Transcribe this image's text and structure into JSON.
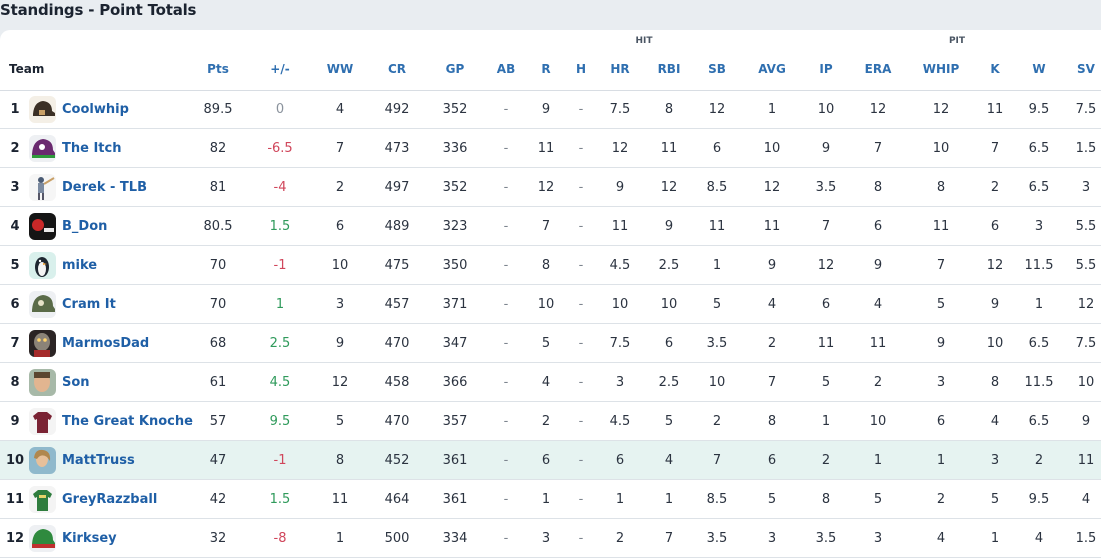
{
  "page_title": "Standings - Point Totals",
  "groups": {
    "hit": "HIT",
    "pit": "PIT"
  },
  "columns": {
    "team": "Team",
    "pts": "Pts",
    "pm": "+/-",
    "ww": "WW",
    "cr": "CR",
    "gp": "GP",
    "ab": "AB",
    "r": "R",
    "h": "H",
    "hr": "HR",
    "rbi": "RBI",
    "sb": "SB",
    "avg": "AVG",
    "ip": "IP",
    "era": "ERA",
    "whip": "WHIP",
    "k": "K",
    "w": "W",
    "sv": "SV"
  },
  "colors": {
    "positive": "#2f9a5b",
    "negative": "#d0465b",
    "link": "#1f5fa6",
    "highlight_row": "#e6f3f1"
  },
  "teams": [
    {
      "rank": "1",
      "name": "Coolwhip",
      "avatar": "helmet-dark-avatar",
      "pts": "89.5",
      "pm": "0",
      "ww": "4",
      "cr": "492",
      "gp": "352",
      "ab": "-",
      "r": "9",
      "h": "-",
      "hr": "7.5",
      "rbi": "8",
      "sb": "12",
      "avg": "1",
      "ip": "10",
      "era": "12",
      "whip": "12",
      "k": "11",
      "w": "9.5",
      "sv": "7.5"
    },
    {
      "rank": "2",
      "name": "The Itch",
      "avatar": "helmet-purple-avatar",
      "pts": "82",
      "pm": "-6.5",
      "ww": "7",
      "cr": "473",
      "gp": "336",
      "ab": "-",
      "r": "11",
      "h": "-",
      "hr": "12",
      "rbi": "11",
      "sb": "6",
      "avg": "10",
      "ip": "9",
      "era": "7",
      "whip": "10",
      "k": "7",
      "w": "6.5",
      "sv": "1.5"
    },
    {
      "rank": "3",
      "name": "Derek - TLB",
      "avatar": "batter-figure-avatar",
      "pts": "81",
      "pm": "-4",
      "ww": "2",
      "cr": "497",
      "gp": "352",
      "ab": "-",
      "r": "12",
      "h": "-",
      "hr": "9",
      "rbi": "12",
      "sb": "8.5",
      "avg": "12",
      "ip": "3.5",
      "era": "8",
      "whip": "8",
      "k": "2",
      "w": "6.5",
      "sv": "3"
    },
    {
      "rank": "4",
      "name": "B_Don",
      "avatar": "dark-logo-avatar",
      "pts": "80.5",
      "pm": "1.5",
      "ww": "6",
      "cr": "489",
      "gp": "323",
      "ab": "-",
      "r": "7",
      "h": "-",
      "hr": "11",
      "rbi": "9",
      "sb": "11",
      "avg": "11",
      "ip": "7",
      "era": "6",
      "whip": "11",
      "k": "6",
      "w": "3",
      "sv": "5.5"
    },
    {
      "rank": "5",
      "name": "mike",
      "avatar": "penguin-avatar",
      "pts": "70",
      "pm": "-1",
      "ww": "10",
      "cr": "475",
      "gp": "350",
      "ab": "-",
      "r": "8",
      "h": "-",
      "hr": "4.5",
      "rbi": "2.5",
      "sb": "1",
      "avg": "9",
      "ip": "12",
      "era": "9",
      "whip": "7",
      "k": "12",
      "w": "11.5",
      "sv": "5.5"
    },
    {
      "rank": "6",
      "name": "Cram It",
      "avatar": "helmet-olive-avatar",
      "pts": "70",
      "pm": "1",
      "ww": "3",
      "cr": "457",
      "gp": "371",
      "ab": "-",
      "r": "10",
      "h": "-",
      "hr": "10",
      "rbi": "10",
      "sb": "5",
      "avg": "4",
      "ip": "6",
      "era": "4",
      "whip": "5",
      "k": "9",
      "w": "1",
      "sv": "12"
    },
    {
      "rank": "7",
      "name": "MarmosDad",
      "avatar": "creature-avatar",
      "pts": "68",
      "pm": "2.5",
      "ww": "9",
      "cr": "470",
      "gp": "347",
      "ab": "-",
      "r": "5",
      "h": "-",
      "hr": "7.5",
      "rbi": "6",
      "sb": "3.5",
      "avg": "2",
      "ip": "11",
      "era": "11",
      "whip": "9",
      "k": "10",
      "w": "6.5",
      "sv": "7.5"
    },
    {
      "rank": "8",
      "name": "Son",
      "avatar": "face-photo-avatar",
      "pts": "61",
      "pm": "4.5",
      "ww": "12",
      "cr": "458",
      "gp": "366",
      "ab": "-",
      "r": "4",
      "h": "-",
      "hr": "3",
      "rbi": "2.5",
      "sb": "10",
      "avg": "7",
      "ip": "5",
      "era": "2",
      "whip": "3",
      "k": "8",
      "w": "11.5",
      "sv": "10"
    },
    {
      "rank": "9",
      "name": "The Great Knoche",
      "avatar": "jersey-maroon-avatar",
      "pts": "57",
      "pm": "9.5",
      "ww": "5",
      "cr": "470",
      "gp": "357",
      "ab": "-",
      "r": "2",
      "h": "-",
      "hr": "4.5",
      "rbi": "5",
      "sb": "2",
      "avg": "8",
      "ip": "1",
      "era": "10",
      "whip": "6",
      "k": "4",
      "w": "6.5",
      "sv": "9"
    },
    {
      "rank": "10",
      "name": "MattTruss",
      "avatar": "person-photo-avatar",
      "pts": "47",
      "pm": "-1",
      "ww": "8",
      "cr": "452",
      "gp": "361",
      "ab": "-",
      "r": "6",
      "h": "-",
      "hr": "6",
      "rbi": "4",
      "sb": "7",
      "avg": "6",
      "ip": "2",
      "era": "1",
      "whip": "1",
      "k": "3",
      "w": "2",
      "sv": "11"
    },
    {
      "rank": "11",
      "name": "GreyRazzball",
      "avatar": "jersey-green-avatar",
      "pts": "42",
      "pm": "1.5",
      "ww": "11",
      "cr": "464",
      "gp": "361",
      "ab": "-",
      "r": "1",
      "h": "-",
      "hr": "1",
      "rbi": "1",
      "sb": "8.5",
      "avg": "5",
      "ip": "8",
      "era": "5",
      "whip": "2",
      "k": "5",
      "w": "9.5",
      "sv": "4"
    },
    {
      "rank": "12",
      "name": "Kirksey",
      "avatar": "helmet-green-red-avatar",
      "pts": "32",
      "pm": "-8",
      "ww": "1",
      "cr": "500",
      "gp": "334",
      "ab": "-",
      "r": "3",
      "h": "-",
      "hr": "2",
      "rbi": "7",
      "sb": "3.5",
      "avg": "3",
      "ip": "3.5",
      "era": "3",
      "whip": "4",
      "k": "1",
      "w": "4",
      "sv": "1.5"
    }
  ]
}
